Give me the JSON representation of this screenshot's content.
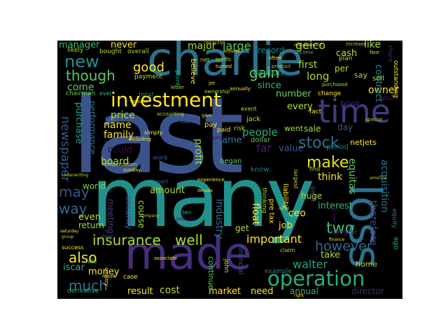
{
  "words": [
    {
      "text": "last",
      "color": "#3b528b"
    },
    {
      "text": "many",
      "color": "#21918c"
    },
    {
      "text": "charlie",
      "color": "#2c728e"
    },
    {
      "text": "made",
      "color": "#472d7b"
    },
    {
      "text": "loss",
      "color": "#2c728e"
    },
    {
      "text": "time",
      "color": "#443983"
    },
    {
      "text": "investment",
      "color": "#fde725"
    },
    {
      "text": "operation",
      "color": "#28ae80"
    },
    {
      "text": "insurance",
      "color": "#addc30"
    },
    {
      "text": "well",
      "color": "#addc30"
    },
    {
      "text": "new",
      "color": "#21918c"
    },
    {
      "text": "though",
      "color": "#5ec962"
    },
    {
      "text": "stock",
      "color": "#2c728e"
    },
    {
      "text": "gain",
      "color": "#75d054"
    },
    {
      "text": "make",
      "color": "#e5e419"
    },
    {
      "text": "many",
      "color": "#21918c"
    },
    {
      "text": "people",
      "color": "#28ae80"
    },
    {
      "text": "walter",
      "color": "#20a386"
    },
    {
      "text": "two",
      "color": "#3fbc73"
    },
    {
      "text": "however",
      "color": "#31688e"
    },
    {
      "text": "much",
      "color": "#2c728e"
    },
    {
      "text": "also",
      "color": "#fde725"
    },
    {
      "text": "way",
      "color": "#31688e"
    },
    {
      "text": "may",
      "color": "#3b528b"
    },
    {
      "text": "newspaper",
      "color": "#365c8d"
    },
    {
      "text": "come",
      "color": "#5ec962"
    },
    {
      "text": "good",
      "color": "#fde725"
    },
    {
      "text": "large",
      "color": "#5ec962"
    },
    {
      "text": "major",
      "color": "#addc30"
    },
    {
      "text": "geico",
      "color": "#b5de2b"
    },
    {
      "text": "like",
      "color": "#addc30"
    },
    {
      "text": "manager",
      "color": "#35b779"
    },
    {
      "text": "never",
      "color": "#fde725"
    },
    {
      "text": "first",
      "color": "#a0da39"
    },
    {
      "text": "long",
      "color": "#addc30"
    },
    {
      "text": "per",
      "color": "#b5de2b"
    },
    {
      "text": "since",
      "color": "#35b779"
    },
    {
      "text": "layton",
      "color": "#21918c"
    },
    {
      "text": "record",
      "color": "#26828e"
    },
    {
      "text": "cash",
      "color": "#b5de2b"
    },
    {
      "text": "number",
      "color": "#75d054"
    },
    {
      "text": "owner",
      "color": "#fde725"
    },
    {
      "text": "every",
      "color": "#b5de2b"
    },
    {
      "text": "sale",
      "color": "#a0da39"
    },
    {
      "text": "day",
      "color": "#38588c"
    },
    {
      "text": "value",
      "color": "#38588c"
    },
    {
      "text": "went",
      "color": "#addc30"
    },
    {
      "text": "think",
      "color": "#fde725"
    },
    {
      "text": "purchase",
      "color": "#20a386"
    },
    {
      "text": "performance",
      "color": "#2c728e"
    },
    {
      "text": "price",
      "color": "#b5de2b"
    },
    {
      "text": "name",
      "color": "#fde725"
    },
    {
      "text": "family",
      "color": "#fde725"
    },
    {
      "text": "board",
      "color": "#b5de2b"
    },
    {
      "text": "could",
      "color": "#440154"
    },
    {
      "text": "profit",
      "color": "#a0da39"
    },
    {
      "text": "tax",
      "color": "#3b528b"
    },
    {
      "text": "came",
      "color": "#26828e"
    },
    {
      "text": "far",
      "color": "#481a6c"
    },
    {
      "text": "world",
      "color": "#75d054"
    },
    {
      "text": "amount",
      "color": "#addc30"
    },
    {
      "text": "even",
      "color": "#b5de2b"
    },
    {
      "text": "return",
      "color": "#a0da39"
    },
    {
      "text": "money",
      "color": "#fde725"
    },
    {
      "text": "meeting",
      "color": "#433e85"
    },
    {
      "text": "security",
      "color": "#3b528b"
    },
    {
      "text": "course",
      "color": "#a0da39"
    },
    {
      "text": "industry",
      "color": "#2c728e"
    },
    {
      "text": "float",
      "color": "#fde725"
    },
    {
      "text": "important",
      "color": "#fde725"
    },
    {
      "text": "ceo",
      "color": "#fde725"
    },
    {
      "text": "huge",
      "color": "#addc30"
    },
    {
      "text": "job",
      "color": "#fde725"
    },
    {
      "text": "take",
      "color": "#addc30"
    },
    {
      "text": "interest",
      "color": "#35b779"
    },
    {
      "text": "equitas",
      "color": "#5ec962"
    },
    {
      "text": "acquisition",
      "color": "#2c728e"
    },
    {
      "text": "therefore",
      "color": "#433e85"
    },
    {
      "text": "contract",
      "color": "#26828e"
    },
    {
      "text": "netjets",
      "color": "#fde725"
    },
    {
      "text": "iscar",
      "color": "#35b779"
    },
    {
      "text": "result",
      "color": "#fde725"
    },
    {
      "text": "cost",
      "color": "#b5de2b"
    },
    {
      "text": "market",
      "color": "#fde725"
    },
    {
      "text": "need",
      "color": "#fde725"
    },
    {
      "text": "annual",
      "color": "#35b779"
    },
    {
      "text": "director",
      "color": "#482878"
    },
    {
      "text": "home",
      "color": "#addc30"
    },
    {
      "text": "get",
      "color": "#addc30"
    },
    {
      "text": "book",
      "color": "#481a6c"
    },
    {
      "text": "dollar",
      "color": "#5ec962"
    },
    {
      "text": "jack",
      "color": "#b5de2b"
    },
    {
      "text": "began",
      "color": "#5ec962"
    },
    {
      "text": "know",
      "color": "#26828e"
    },
    {
      "text": "say",
      "color": "#addc30"
    },
    {
      "text": "sell",
      "color": "#b5de2b"
    },
    {
      "text": "future",
      "color": "#481a6c"
    },
    {
      "text": "bought",
      "color": "#addc30"
    },
    {
      "text": "overall",
      "color": "#addc30"
    },
    {
      "text": "chairman",
      "color": "#75d054"
    },
    {
      "text": "payment",
      "color": "#b5de2b"
    },
    {
      "text": "continue",
      "color": "#5ec962"
    },
    {
      "text": "financial",
      "color": "#3b528b"
    },
    {
      "text": "derivative",
      "color": "#35b779"
    },
    {
      "text": "case",
      "color": "#fde725"
    },
    {
      "text": "example",
      "color": "#26828e"
    },
    {
      "text": "investor",
      "color": "#482878"
    },
    {
      "text": "ago",
      "color": "#20a386"
    },
    {
      "text": "period",
      "color": "#26828e"
    },
    {
      "text": "fact",
      "color": "#fde725"
    },
    {
      "text": "change",
      "color": "#fde725"
    },
    {
      "text": "event",
      "color": "#addc30"
    },
    {
      "text": "pay",
      "color": "#fde725"
    },
    {
      "text": "paid",
      "color": "#fde725"
    },
    {
      "text": "risk",
      "color": "#b5de2b"
    },
    {
      "text": "total",
      "color": "#21918c"
    },
    {
      "text": "believe",
      "color": "#fde725"
    },
    {
      "text": "point",
      "color": "#20a386"
    },
    {
      "text": "likely",
      "color": "#addc30"
    },
    {
      "text": "outstanding",
      "color": "#fde725"
    },
    {
      "text": "plan",
      "color": "#addc30"
    },
    {
      "text": "share",
      "color": "#482878"
    },
    {
      "text": "increase",
      "color": "#addc30"
    },
    {
      "text": "four",
      "color": "#fde725"
    },
    {
      "text": "income",
      "color": "#35b779"
    },
    {
      "text": "ever",
      "color": "#35b779"
    },
    {
      "text": "equity",
      "color": "#26828e"
    },
    {
      "text": "liability",
      "color": "#fde725"
    },
    {
      "text": "thinking",
      "color": "#b5de2b"
    },
    {
      "text": "pre tax",
      "color": "#fde725"
    },
    {
      "text": "given",
      "color": "#440154"
    },
    {
      "text": "page",
      "color": "#3b528b"
    },
    {
      "text": "success",
      "color": "#fde725"
    },
    {
      "text": "rate",
      "color": "#5ec962"
    },
    {
      "text": "deal",
      "color": "#433e85"
    },
    {
      "text": "work",
      "color": "#3b528b"
    },
    {
      "text": "part",
      "color": "#3b528b"
    },
    {
      "text": "sunday",
      "color": "#fde725"
    },
    {
      "text": "compensation",
      "color": "#b5de2b"
    },
    {
      "text": "ten",
      "color": "#35b779"
    },
    {
      "text": "problem",
      "color": "#440154"
    },
    {
      "text": "john",
      "color": "#fde725"
    },
    {
      "text": "largest",
      "color": "#b5de2b"
    },
    {
      "text": "find",
      "color": "#b5de2b"
    },
    {
      "text": "claim",
      "color": "#addc30"
    },
    {
      "text": "annually",
      "color": "#fde725"
    },
    {
      "text": "ownership",
      "color": "#addc30"
    },
    {
      "text": "country",
      "color": "#fde725"
    },
    {
      "text": "associate",
      "color": "#fde725"
    },
    {
      "text": "accounting",
      "color": "#addc30"
    },
    {
      "text": "simply",
      "color": "#fde725"
    },
    {
      "text": "including",
      "color": "#fde725"
    },
    {
      "text": "foundation",
      "color": "#440154"
    },
    {
      "text": "around",
      "color": "#fde725"
    },
    {
      "text": "exactly",
      "color": "#addc30"
    },
    {
      "text": "terrific",
      "color": "#b5de2b"
    },
    {
      "text": "often",
      "color": "#fde725"
    },
    {
      "text": "turned",
      "color": "#fde725"
    },
    {
      "text": "product",
      "color": "#addc30"
    },
    {
      "text": "purchased",
      "color": "#addc30"
    },
    {
      "text": "management",
      "color": "#b5de2b"
    },
    {
      "text": "special",
      "color": "#addc30"
    },
    {
      "text": "net",
      "color": "#addc30"
    },
    {
      "text": "experience",
      "color": "#fde725"
    },
    {
      "text": "group",
      "color": "#addc30"
    },
    {
      "text": "mitek",
      "color": "#fde725"
    },
    {
      "text": "right",
      "color": "#fde725"
    },
    {
      "text": "finance",
      "color": "#fde725"
    },
    {
      "text": "saturday",
      "color": "#fde725"
    },
    {
      "text": "give",
      "color": "#b5de2b"
    },
    {
      "text": "volume",
      "color": "#fde725"
    },
    {
      "text": "letter",
      "color": "#b5de2b"
    },
    {
      "text": "america",
      "color": "#b5de2b"
    },
    {
      "text": "underwriting",
      "color": "#b5de2b"
    },
    {
      "text": "jet",
      "color": "#fde725"
    },
    {
      "text": "retail",
      "color": "#addc30"
    },
    {
      "text": "company",
      "color": "#addc30"
    },
    {
      "text": "decade",
      "color": "#fde725"
    }
  ]
}
